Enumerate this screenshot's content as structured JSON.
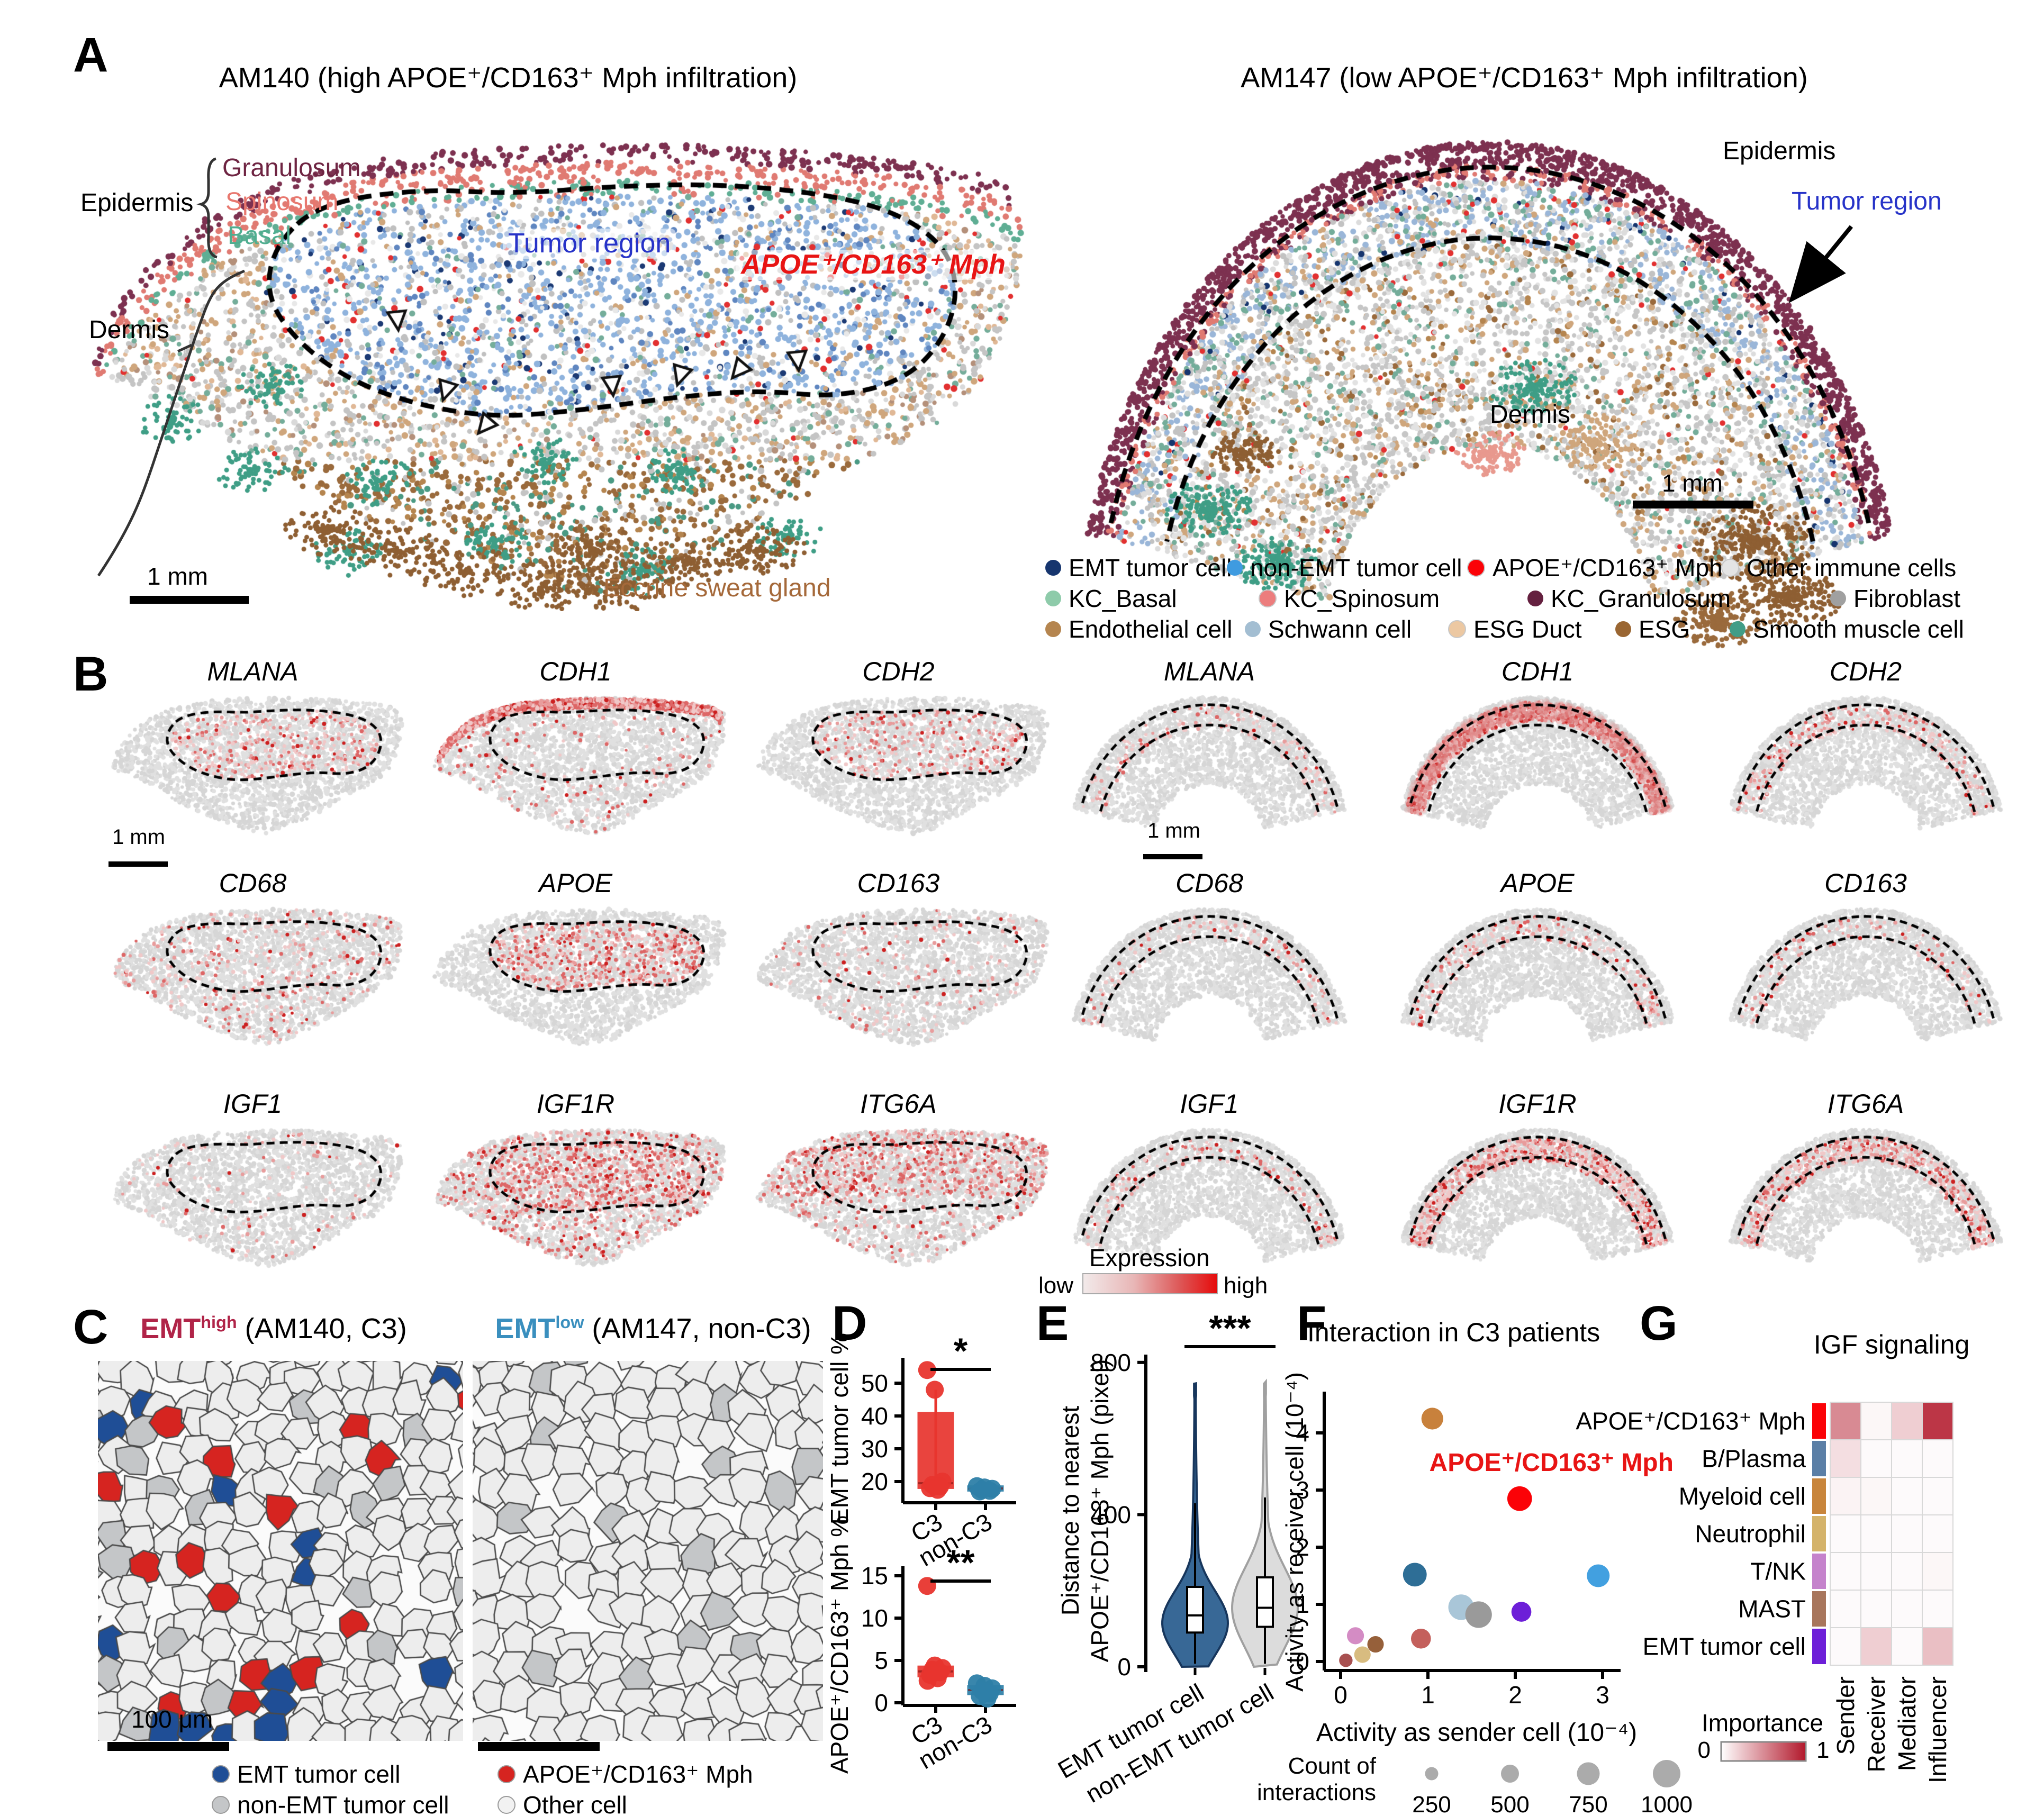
{
  "figure": {
    "panel_letters": [
      "A",
      "B",
      "C",
      "D",
      "E",
      "F",
      "G"
    ],
    "panelA": {
      "left_title": "AM140 (high APOE⁺/CD163⁺ Mph infiltration)",
      "right_title": "AM147 (low APOE⁺/CD163⁺ Mph infiltration)",
      "labels": {
        "epidermis": "Epidermis",
        "granulosum": "Granulosum",
        "spinosum": "Spinosum",
        "basal": "Basal",
        "dermis": "Dermis",
        "tumor_region": "Tumor region",
        "mph": "APOE⁺/CD163⁺ Mph",
        "eccrine": "Eccrine sweat gland",
        "scale_left": "1 mm",
        "epidermis_right": "Epidermis",
        "tumor_region_right": "Tumor region",
        "dermis_right": "Dermis",
        "scale_right": "1 mm"
      },
      "label_colors": {
        "granulosum": "#6e2442",
        "spinosum": "#e8776e",
        "basal": "#4fae90",
        "tumor_region": "#2733c8",
        "mph": "#e81414",
        "eccrine": "#a5693a"
      },
      "legend": [
        {
          "label": "EMT tumor cell",
          "color": "#16356e"
        },
        {
          "label": "non-EMT tumor cell",
          "color": "#3f9be0"
        },
        {
          "label": "APOE⁺/CD163⁺ Mph",
          "color": "#fb0207"
        },
        {
          "label": "Other immune cells",
          "color": "#e4e4e4"
        },
        {
          "label": "KC_Basal",
          "color": "#8ecbaa"
        },
        {
          "label": "KC_Spinosum",
          "color": "#ec7d7d"
        },
        {
          "label": "KC_Granulosum",
          "color": "#64203f"
        },
        {
          "label": "Fibroblast",
          "color": "#a0a0a0"
        },
        {
          "label": "Endothelial cell",
          "color": "#b5854f"
        },
        {
          "label": "Schwann cell",
          "color": "#a3bed2"
        },
        {
          "label": "ESG Duct",
          "color": "#ecc8a2"
        },
        {
          "label": "ESG",
          "color": "#9a6632"
        },
        {
          "label": "Smooth muscle cell",
          "color": "#419d87"
        }
      ]
    },
    "panelB": {
      "genes_left": [
        {
          "name": "MLANA",
          "pattern": "tumor",
          "intensity": 0.55
        },
        {
          "name": "CDH1",
          "pattern": "top",
          "intensity": 0.95
        },
        {
          "name": "CDH2",
          "pattern": "tumor",
          "intensity": 0.5
        },
        {
          "name": "CD68",
          "pattern": "broad",
          "intensity": 0.22
        },
        {
          "name": "APOE",
          "pattern": "tumor",
          "intensity": 0.8
        },
        {
          "name": "CD163",
          "pattern": "broad",
          "intensity": 0.12
        },
        {
          "name": "IGF1",
          "pattern": "broad",
          "intensity": 0.09
        },
        {
          "name": "IGF1R",
          "pattern": "broadtumor",
          "intensity": 0.85
        },
        {
          "name": "ITG6A",
          "pattern": "tophalf",
          "intensity": 0.75
        }
      ],
      "genes_right": [
        {
          "name": "MLANA",
          "pattern": "band",
          "intensity": 0.06
        },
        {
          "name": "CDH1",
          "pattern": "bandouter",
          "intensity": 0.55
        },
        {
          "name": "CDH2",
          "pattern": "band",
          "intensity": 0.1
        },
        {
          "name": "CD68",
          "pattern": "band",
          "intensity": 0.05
        },
        {
          "name": "APOE",
          "pattern": "band",
          "intensity": 0.08
        },
        {
          "name": "CD163",
          "pattern": "band",
          "intensity": 0.05
        },
        {
          "name": "IGF1",
          "pattern": "band",
          "intensity": 0.06
        },
        {
          "name": "IGF1R",
          "pattern": "band",
          "intensity": 0.32
        },
        {
          "name": "ITG6A",
          "pattern": "band",
          "intensity": 0.24
        }
      ],
      "scale_left": "1 mm",
      "scale_right": "1 mm",
      "expression_legend": {
        "title": "Expression",
        "low": "low",
        "high": "high"
      }
    },
    "panelC": {
      "left_title": {
        "base": "EMT",
        "sup": "high",
        "rest": " (AM140, C3)",
        "color": "#b02448"
      },
      "right_title": {
        "base": "EMT",
        "sup": "low",
        "rest": " (AM147, non-C3)",
        "color": "#3a8fbe"
      },
      "scale": "100 μm",
      "legend": [
        {
          "label": "EMT tumor cell",
          "color": "#1f4e96"
        },
        {
          "label": "APOE⁺/CD163⁺ Mph",
          "color": "#d62420"
        },
        {
          "label": "non-EMT tumor cell",
          "color": "#c4c6c8"
        },
        {
          "label": "Other cell",
          "color": "#f2f2f2"
        }
      ]
    }
  },
  "chart_data": [
    {
      "id": "D-top",
      "type": "box-strip",
      "ylabel": "EMT tumor cell %",
      "yticks": [
        20,
        30,
        40,
        50
      ],
      "significance": "*",
      "groups": [
        {
          "label": "C3",
          "color": "#e8352e",
          "box": {
            "q1": 18,
            "median": 19.5,
            "q3": 41,
            "whisker_low": 17.5,
            "whisker_high": 48
          },
          "points": [
            54,
            48,
            20,
            19,
            18.5,
            18,
            17.5
          ]
        },
        {
          "label": "non-C3",
          "color": "#2e7fa8",
          "box": {
            "q1": 17.2,
            "median": 17.9,
            "q3": 18.6,
            "whisker_low": 16.8,
            "whisker_high": 19
          },
          "points": [
            18.6,
            18.2,
            17.8,
            17.5,
            17.2,
            17
          ]
        }
      ]
    },
    {
      "id": "D-bottom",
      "type": "box-strip",
      "ylabel": "APOE⁺/CD163⁺ Mph %",
      "yticks": [
        0,
        5,
        10,
        15
      ],
      "significance": "**",
      "groups": [
        {
          "label": "C3",
          "color": "#e8352e",
          "box": {
            "q1": 3.1,
            "median": 3.7,
            "q3": 4.3,
            "whisker_low": 2.6,
            "whisker_high": 4.6
          },
          "points": [
            13.8,
            4.4,
            4.1,
            3.9,
            3.6,
            3.3,
            2.9,
            2.6
          ]
        },
        {
          "label": "non-C3",
          "color": "#2e7fa8",
          "box": {
            "q1": 1.0,
            "median": 1.5,
            "q3": 2.0,
            "whisker_low": 0.4,
            "whisker_high": 2.3
          },
          "points": [
            2.3,
            2.0,
            1.7,
            1.4,
            1.1,
            0.8,
            0.5
          ]
        }
      ]
    },
    {
      "id": "E",
      "type": "violin",
      "ylabel": [
        "Distance to nearest",
        "APOE⁺/CD163⁺ Mph (pixel)"
      ],
      "yticks": [
        0,
        400,
        800
      ],
      "ylim": [
        0,
        800
      ],
      "significance": "***",
      "groups": [
        {
          "label": "EMT tumor cell",
          "fill": "#386896",
          "edge": "#17365c",
          "box": {
            "q1": 90,
            "median": 135,
            "q3": 210,
            "whisker_high": 430
          },
          "peak": 115,
          "sd": 85,
          "max": 745
        },
        {
          "label": "non-EMT tumor cell",
          "fill": "#dcdcdc",
          "edge": "#a0a0a0",
          "box": {
            "q1": 105,
            "median": 155,
            "q3": 235,
            "whisker_high": 445
          },
          "peak": 155,
          "sd": 105,
          "max": 750
        }
      ]
    },
    {
      "id": "F",
      "type": "bubble-scatter",
      "title": "Interaction in C3 patients",
      "xlabel": "Activity as sender cell (10⁻⁴)",
      "ylabel": "Activity as receiver cell (10⁻⁴)",
      "xticks": [
        0,
        1,
        2,
        3
      ],
      "yticks": [
        0,
        1,
        2,
        3,
        4
      ],
      "highlight_label": "APOE⁺/CD163⁺ Mph",
      "size_legend": {
        "label": [
          "Count of",
          "interactions"
        ],
        "values": [
          250,
          500,
          750,
          1000
        ]
      },
      "points": [
        {
          "x": 1.05,
          "y": 4.25,
          "count": 700,
          "color": "#c8813c"
        },
        {
          "x": 2.05,
          "y": 2.85,
          "count": 850,
          "color": "#fb0207",
          "highlight": true
        },
        {
          "x": 0.85,
          "y": 1.52,
          "count": 800,
          "color": "#2e6e96"
        },
        {
          "x": 2.95,
          "y": 1.5,
          "count": 750,
          "color": "#42a0e0"
        },
        {
          "x": 1.38,
          "y": 0.95,
          "count": 900,
          "color": "#a9c6d8"
        },
        {
          "x": 1.58,
          "y": 0.82,
          "count": 950,
          "color": "#9a9a9a"
        },
        {
          "x": 2.07,
          "y": 0.87,
          "count": 600,
          "color": "#6d1fd8"
        },
        {
          "x": 0.92,
          "y": 0.4,
          "count": 600,
          "color": "#c4605c"
        },
        {
          "x": 0.17,
          "y": 0.45,
          "count": 450,
          "color": "#d48cc4"
        },
        {
          "x": 0.4,
          "y": 0.3,
          "count": 420,
          "color": "#96603a"
        },
        {
          "x": 0.25,
          "y": 0.12,
          "count": 420,
          "color": "#d8bc80"
        },
        {
          "x": 0.06,
          "y": 0.02,
          "count": 260,
          "color": "#a85050"
        }
      ]
    },
    {
      "id": "G",
      "type": "heatmap",
      "title": "IGF signaling",
      "columns": [
        "Sender",
        "Receiver",
        "Mediator",
        "Influencer"
      ],
      "rows": [
        {
          "label": "APOE⁺/CD163⁺ Mph",
          "strip": "#fb0207",
          "values": [
            0.45,
            0.02,
            0.16,
            0.85
          ]
        },
        {
          "label": "B/Plasma",
          "strip": "#5b7fa6",
          "values": [
            0.1,
            0.01,
            0.01,
            0.01
          ]
        },
        {
          "label": "Myeloid cell",
          "strip": "#c8853c",
          "values": [
            0.03,
            0.02,
            0.01,
            0.01
          ]
        },
        {
          "label": "Neutrophil",
          "strip": "#d4b36a",
          "values": [
            0.01,
            0.01,
            0.01,
            0.01
          ]
        },
        {
          "label": "T/NK",
          "strip": "#c583cc",
          "values": [
            0.01,
            0.01,
            0.01,
            0.02
          ]
        },
        {
          "label": "MAST",
          "strip": "#a8765c",
          "values": [
            0.01,
            0.01,
            0.01,
            0.01
          ]
        },
        {
          "label": "EMT tumor cell",
          "strip": "#6d1fd8",
          "values": [
            0.01,
            0.16,
            0.01,
            0.22
          ]
        }
      ],
      "legend": {
        "label": "Importance",
        "min": "0",
        "max": "1"
      }
    }
  ]
}
